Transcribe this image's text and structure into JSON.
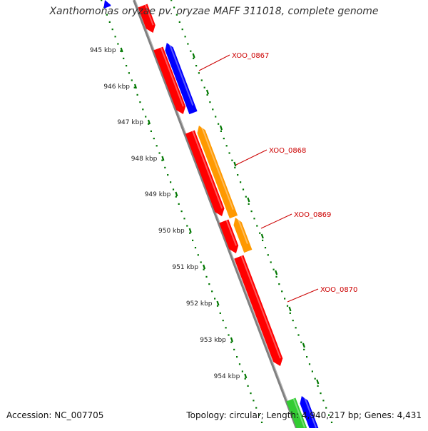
{
  "title": "Xanthomonas oryzae pv. oryzae MAFF 311018, complete genome",
  "accession": "Accession: NC_007705",
  "stats": "Topology: circular; Length: 4,940,217 bp; Genes: 4,431",
  "kbp_labels": [
    "945 kbp",
    "946 kbp",
    "947 kbp",
    "948 kbp",
    "949 kbp",
    "950 kbp",
    "951 kbp",
    "952 kbp",
    "953 kbp",
    "954 kbp"
  ],
  "gene_labels": [
    "XOO_0867",
    "XOO_0868",
    "XOO_0869",
    "XOO_0870"
  ],
  "colors": {
    "forward_strand": "#ff0000",
    "reverse_blue": "#0000ff",
    "reverse_orange": "#ff9900",
    "green": "#33cc33",
    "backbone": "#808080",
    "ticks": "#007700",
    "label": "#cc0000"
  }
}
